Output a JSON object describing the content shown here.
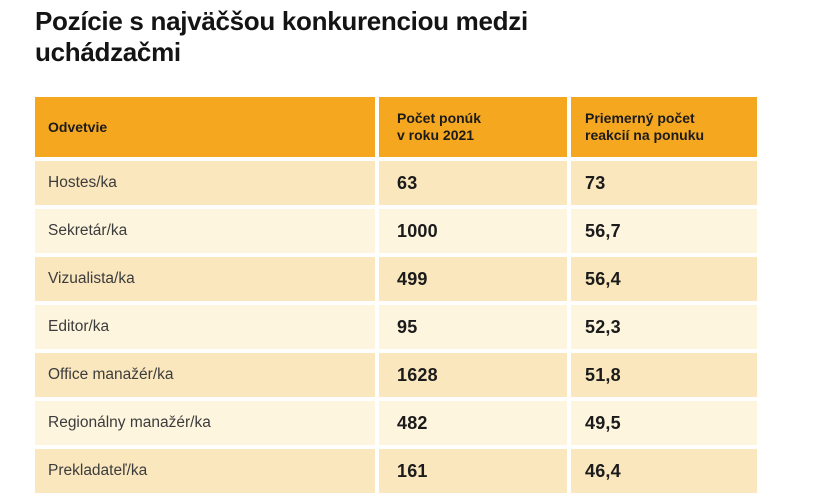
{
  "title": "Pozície s najväčšou konkurenciou medzi\nuchádzačmi",
  "table": {
    "columns": [
      {
        "label": "Odvetvie"
      },
      {
        "label": "Počet ponúk\nv roku 2021"
      },
      {
        "label": "Priemerný počet\nreakcií na ponuku"
      }
    ],
    "rows": [
      {
        "position": "Hostes/ka",
        "offers": "63",
        "reactions": "73"
      },
      {
        "position": "Sekretár/ka",
        "offers": "1000",
        "reactions": "56,7"
      },
      {
        "position": "Vizualista/ka",
        "offers": "499",
        "reactions": "56,4"
      },
      {
        "position": "Editor/ka",
        "offers": "95",
        "reactions": "52,3"
      },
      {
        "position": "Office manažér/ka",
        "offers": "1628",
        "reactions": "51,8"
      },
      {
        "position": "Regionálny manažér/ka",
        "offers": "482",
        "reactions": "49,5"
      },
      {
        "position": "Prekladateľ/ka",
        "offers": "161",
        "reactions": "46,4"
      }
    ]
  },
  "colors": {
    "header_bg": "#F5A71F",
    "row_dark": "#FAE7BE",
    "row_light": "#FDF5DE",
    "text_dark": "#1B1B1B",
    "row_text": "#3C3C3C",
    "page_bg": "#FFFFFF"
  },
  "chart_data": {
    "type": "table",
    "title": "Pozície s najväčšou konkurenciou medzi uchádzačmi",
    "columns": [
      "Odvetvie",
      "Počet ponúk v roku 2021",
      "Priemerný počet reakcií na ponuku"
    ],
    "rows": [
      [
        "Hostes/ka",
        63,
        73
      ],
      [
        "Sekretár/ka",
        1000,
        56.7
      ],
      [
        "Vizualista/ka",
        499,
        56.4
      ],
      [
        "Editor/ka",
        95,
        52.3
      ],
      [
        "Office manažér/ka",
        1628,
        51.8
      ],
      [
        "Regionálny manažér/ka",
        482,
        49.5
      ],
      [
        "Prekladateľ/ka",
        161,
        46.4
      ]
    ],
    "notes": "Rows sorted descending by average reactions per offer; last row partially cut off at image bottom; decimal comma used in display."
  }
}
